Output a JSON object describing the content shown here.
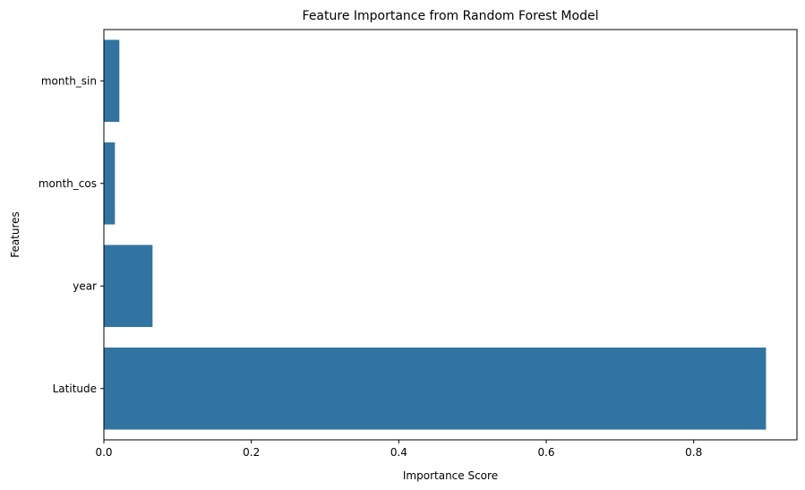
{
  "chart_data": {
    "type": "bar",
    "orientation": "horizontal",
    "title": "Feature Importance from Random Forest Model",
    "xlabel": "Importance Score",
    "ylabel": "Features",
    "categories": [
      "month_sin",
      "month_cos",
      "year",
      "Latitude"
    ],
    "values": [
      0.021,
      0.015,
      0.066,
      0.898
    ],
    "xlim": [
      0,
      0.94
    ],
    "xticks": [
      0.0,
      0.2,
      0.4,
      0.6,
      0.8
    ],
    "xtick_labels": [
      "0.0",
      "0.2",
      "0.4",
      "0.6",
      "0.8"
    ],
    "bar_color": "#3274a1",
    "grid": false,
    "legend": "none"
  }
}
